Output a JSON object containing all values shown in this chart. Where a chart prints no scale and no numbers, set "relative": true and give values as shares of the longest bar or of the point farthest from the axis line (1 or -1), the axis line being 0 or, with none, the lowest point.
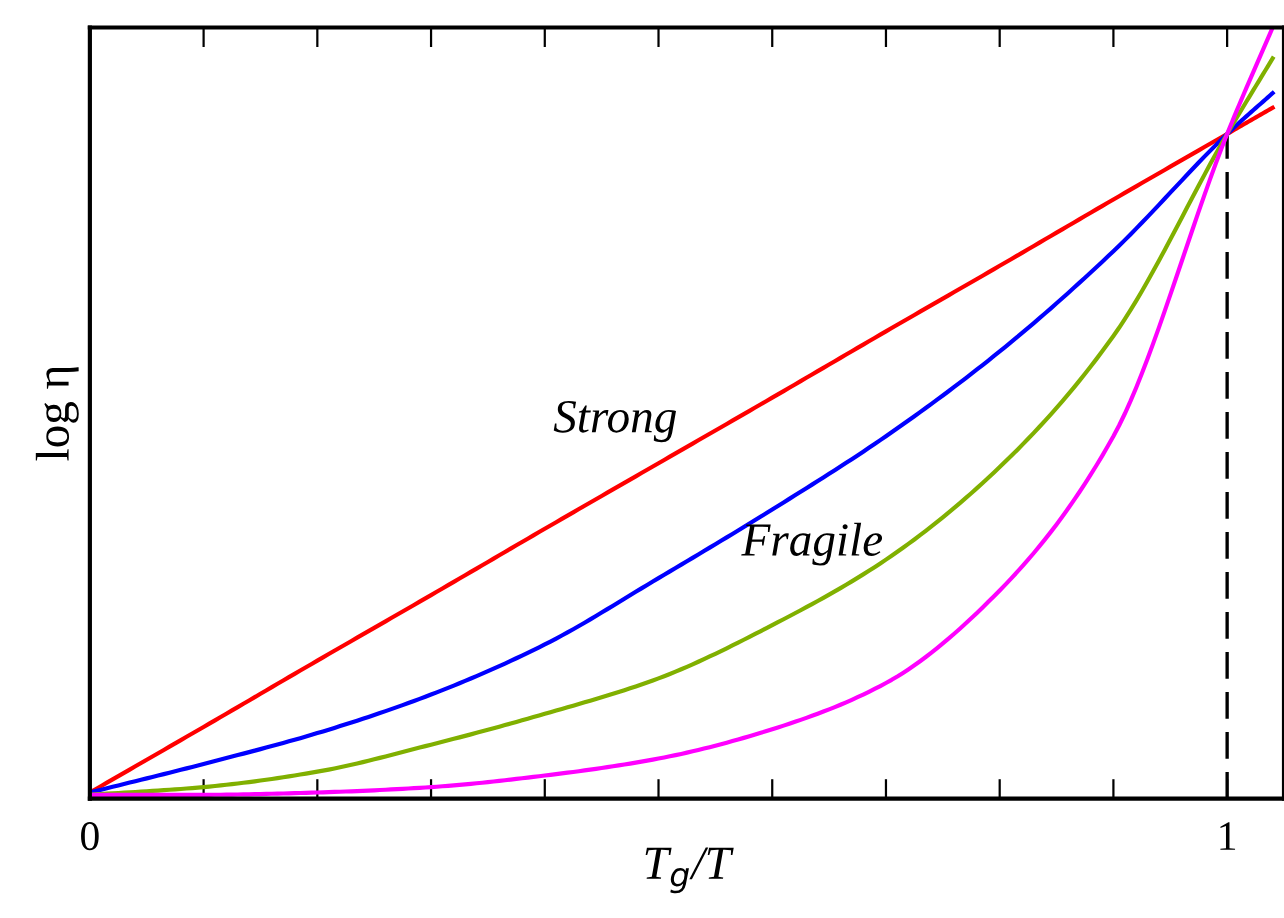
{
  "chart_data": {
    "type": "line",
    "relative": true,
    "xlabel": "T$_{g}$/T",
    "ylabel": "log η",
    "tick_labels": "x",
    "grid": false,
    "legend": false,
    "xlim": [
      0,
      1.05
    ],
    "xticks": [
      0,
      {
        "value": 0.1,
        "label": null
      },
      {
        "value": 0.2,
        "label": null
      },
      {
        "value": 0.3,
        "label": null
      },
      {
        "value": 0.4,
        "label": null
      },
      {
        "value": 0.5,
        "label": null
      },
      {
        "value": 0.6,
        "label": null
      },
      {
        "value": 0.7,
        "label": null
      },
      {
        "value": 0.8,
        "label": null
      },
      {
        "value": 0.9,
        "label": null
      },
      1
    ],
    "x": [
      0,
      0.1,
      0.2,
      0.3,
      0.4,
      0.5,
      0.6,
      0.7,
      0.8,
      0.9,
      1.0,
      1.04
    ],
    "series": [
      {
        "color": "#ff0000",
        "values": [
          0.008,
          0.093,
          0.179,
          0.264,
          0.35,
          0.435,
          0.52,
          0.606,
          0.691,
          0.777,
          0.862,
          0.896
        ]
      },
      {
        "color": "#0000ff",
        "values": [
          0.008,
          0.045,
          0.085,
          0.135,
          0.2,
          0.286,
          0.375,
          0.47,
          0.58,
          0.71,
          0.862,
          0.915
        ]
      },
      {
        "color": "#80b000",
        "values": [
          0.005,
          0.015,
          0.035,
          0.07,
          0.11,
          0.156,
          0.225,
          0.31,
          0.43,
          0.6,
          0.862,
          0.96
        ]
      },
      {
        "color": "#ff00ff",
        "values": [
          0.005,
          0.005,
          0.008,
          0.015,
          0.03,
          0.052,
          0.09,
          0.15,
          0.27,
          0.47,
          0.862,
          1.0
        ]
      }
    ],
    "ref_lines": [
      {
        "axis": "x",
        "value": 1,
        "color": "#000000",
        "line_style": "dashed"
      }
    ],
    "annotations": [
      "Strong",
      "Fragile"
    ]
  }
}
